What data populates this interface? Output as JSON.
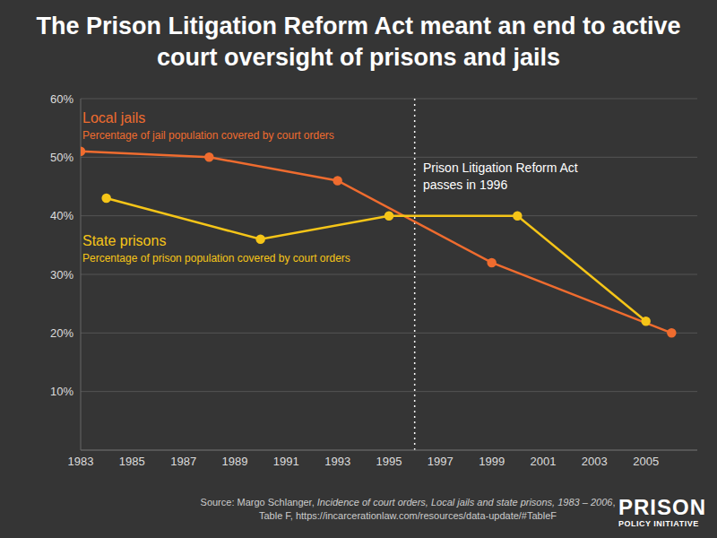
{
  "chart_data": {
    "type": "line",
    "title": "The Prison Litigation Reform Act meant an end to active court oversight of prisons and jails",
    "series": [
      {
        "name": "Local jails",
        "description": "Percentage of jail population covered by court orders",
        "color": "#ef6c2f",
        "marker": "circle",
        "line_style": "solid",
        "x": [
          1983,
          1988,
          1993,
          1999,
          2006
        ],
        "values": [
          51,
          50,
          46,
          32,
          20
        ]
      },
      {
        "name": "State prisons",
        "description": "Percentage of prison population covered by court orders",
        "color": "#f5c518",
        "marker": "circle",
        "line_style": "solid",
        "x": [
          1984,
          1990,
          1995,
          2000,
          2005
        ],
        "values": [
          43,
          36,
          40,
          40,
          22
        ]
      }
    ],
    "xlim": [
      1983,
      2007
    ],
    "xticks": [
      1983,
      1985,
      1987,
      1989,
      1991,
      1993,
      1995,
      1997,
      1999,
      2001,
      2003,
      2005
    ],
    "ylim": [
      0,
      60
    ],
    "yticks": [
      {
        "value": 10,
        "label": "10%"
      },
      {
        "value": 20,
        "label": "20%"
      },
      {
        "value": 30,
        "label": "30%"
      },
      {
        "value": 40,
        "label": "40%"
      },
      {
        "value": 50,
        "label": "50%"
      },
      {
        "value": 60,
        "label": "60%"
      }
    ],
    "grid": true,
    "annotation": {
      "x": 1996,
      "lines": [
        "Prison Litigation Reform Act",
        "passes in 1996"
      ]
    },
    "source": [
      "Source: Margo Schlanger, ",
      "Incidence of court orders, Local jails and state prisons, 1983 – 2006",
      ", Table F, https://incarcerationlaw.com/resources/data-update/#TableF"
    ],
    "logo": [
      "PRISON",
      "POLICY INITIATIVE"
    ]
  }
}
